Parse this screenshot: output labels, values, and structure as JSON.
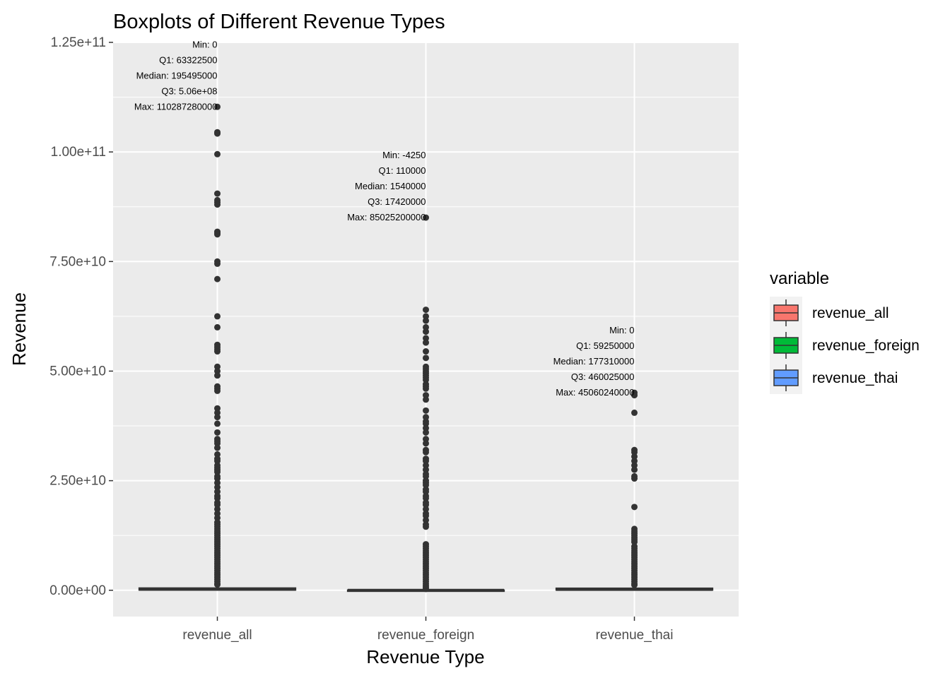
{
  "chart_data": {
    "type": "boxplot",
    "title": "Boxplots of Different Revenue Types",
    "xlabel": "Revenue Type",
    "ylabel": "Revenue",
    "ylim": [
      -6000000000,
      125000000000
    ],
    "yticks": [
      0,
      25000000000,
      50000000000,
      75000000000,
      100000000000,
      125000000000
    ],
    "ytick_labels": [
      "0.00e+00",
      "2.50e+10",
      "5.00e+10",
      "7.50e+10",
      "1.00e+11",
      "1.25e+11"
    ],
    "categories": [
      "revenue_all",
      "revenue_foreign",
      "revenue_thai"
    ],
    "grid": true,
    "legend": {
      "title": "variable",
      "position": "right",
      "entries": [
        {
          "label": "revenue_all",
          "color": "#F8766D"
        },
        {
          "label": "revenue_foreign",
          "color": "#00BA38"
        },
        {
          "label": "revenue_thai",
          "color": "#619CFF"
        }
      ]
    },
    "series": [
      {
        "name": "revenue_all",
        "color": "#F8766D",
        "min": 0,
        "q1": 63322500,
        "median": 195495000,
        "q3": 506000000,
        "max": 110287280000,
        "annotations": [
          "Min: 0",
          "Q1: 63322500",
          "Median: 195495000",
          "Q3: 5.06e+08",
          "Max: 110287280000"
        ],
        "outliers": [
          110287280000,
          104500000000,
          104200000000,
          99500000000,
          90500000000,
          89000000000,
          88500000000,
          88000000000,
          81800000000,
          81500000000,
          81200000000,
          75000000000,
          74500000000,
          71000000000,
          62500000000,
          60000000000,
          56000000000,
          55500000000,
          55000000000,
          54500000000,
          51000000000,
          50000000000,
          49000000000,
          46500000000,
          46000000000,
          45500000000,
          41500000000,
          40500000000,
          39500000000,
          38000000000,
          36000000000,
          34500000000,
          34000000000,
          33500000000,
          32500000000,
          31000000000,
          30000000000,
          29500000000,
          28500000000,
          28000000000,
          27500000000,
          27000000000,
          26000000000,
          25500000000,
          24500000000,
          23500000000,
          22500000000,
          21500000000,
          21000000000,
          20000000000,
          19500000000,
          18500000000,
          17500000000,
          16500000000,
          15500000000,
          15000000000,
          14500000000,
          14000000000,
          13500000000,
          13000000000,
          12500000000,
          12000000000,
          11500000000,
          11000000000,
          10500000000,
          10000000000,
          9500000000,
          9000000000,
          8500000000,
          8000000000,
          7500000000,
          7000000000,
          6500000000,
          6000000000,
          5500000000,
          5000000000,
          4500000000,
          4000000000,
          3500000000,
          3000000000,
          2500000000,
          2000000000,
          1500000000,
          1300000000
        ]
      },
      {
        "name": "revenue_foreign",
        "color": "#00BA38",
        "min": -4250,
        "q1": 110000,
        "median": 1540000,
        "q3": 17420000,
        "max": 85025200000,
        "annotations": [
          "Min: -4250",
          "Q1: 110000",
          "Median: 1540000",
          "Q3: 17420000",
          "Max: 85025200000"
        ],
        "outliers": [
          85025200000,
          64000000000,
          62500000000,
          61500000000,
          60000000000,
          59000000000,
          57500000000,
          56500000000,
          54500000000,
          53000000000,
          51000000000,
          50500000000,
          50000000000,
          49500000000,
          49000000000,
          48500000000,
          48000000000,
          47000000000,
          46500000000,
          46000000000,
          44500000000,
          43500000000,
          41000000000,
          39500000000,
          38500000000,
          38000000000,
          37000000000,
          36000000000,
          34500000000,
          33500000000,
          32000000000,
          31500000000,
          30000000000,
          29500000000,
          28500000000,
          27500000000,
          26500000000,
          26000000000,
          25000000000,
          24500000000,
          24000000000,
          23000000000,
          22500000000,
          21500000000,
          21000000000,
          20000000000,
          19500000000,
          18500000000,
          17500000000,
          17000000000,
          16000000000,
          15000000000,
          14500000000,
          10500000000,
          10000000000,
          9500000000,
          9000000000,
          8500000000,
          8000000000,
          7500000000,
          7000000000,
          6500000000,
          6000000000,
          5500000000,
          5000000000,
          4500000000,
          4000000000,
          3500000000,
          3000000000,
          2500000000,
          2000000000,
          1500000000,
          1000000000,
          600000000,
          300000000
        ]
      },
      {
        "name": "revenue_thai",
        "color": "#619CFF",
        "min": 0,
        "q1": 59250000,
        "median": 177310000,
        "q3": 460025000,
        "max": 45060240000,
        "annotations": [
          "Min: 0",
          "Q1: 59250000",
          "Median: 177310000",
          "Q3: 460025000",
          "Max: 45060240000"
        ],
        "outliers": [
          45060240000,
          44500000000,
          40500000000,
          32000000000,
          31500000000,
          30500000000,
          29500000000,
          28500000000,
          27500000000,
          26000000000,
          25500000000,
          19000000000,
          14000000000,
          13500000000,
          13000000000,
          12500000000,
          12000000000,
          11500000000,
          11000000000,
          10000000000,
          9500000000,
          9000000000,
          8500000000,
          8000000000,
          7500000000,
          7000000000,
          6500000000,
          6000000000,
          5500000000,
          5000000000,
          4500000000,
          4000000000,
          3500000000,
          3000000000,
          2500000000,
          2000000000,
          1500000000,
          1200000000
        ]
      }
    ]
  }
}
